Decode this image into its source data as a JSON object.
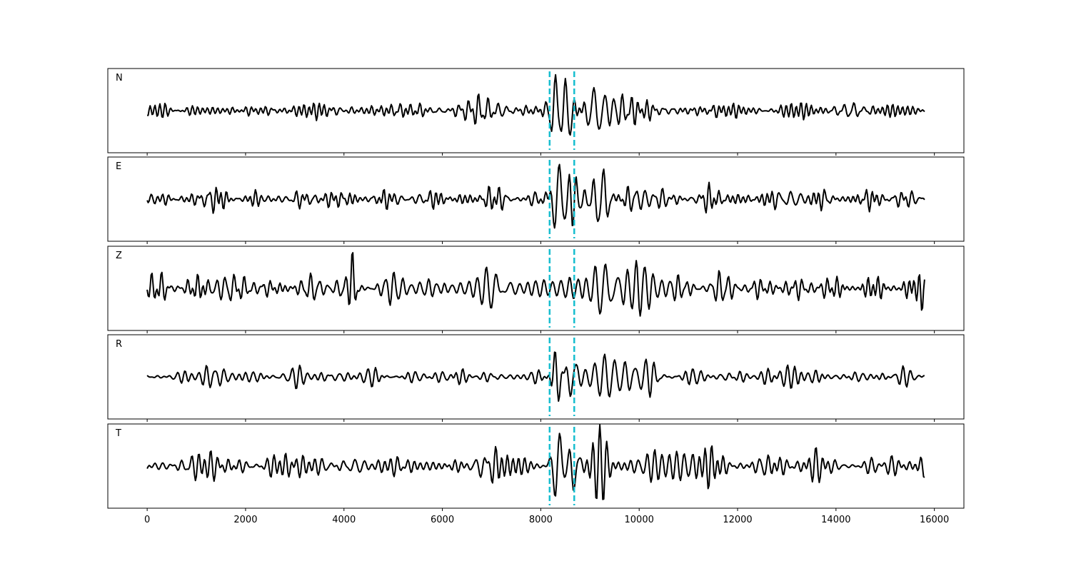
{
  "chart_data": {
    "type": "line",
    "xlim": [
      -800,
      16600
    ],
    "x_ticks": [
      0,
      2000,
      4000,
      6000,
      8000,
      10000,
      12000,
      14000,
      16000
    ],
    "x_tick_labels": [
      "0",
      "2000",
      "4000",
      "6000",
      "8000",
      "10000",
      "12000",
      "14000",
      "16000"
    ],
    "n_samples": 15800,
    "sample_step": 20,
    "picks": [
      8180,
      8680
    ],
    "grid": false,
    "colors": {
      "trace": "#000000",
      "pick": "#17becf",
      "frame": "#000000"
    },
    "panels": [
      {
        "label": "N",
        "ylim": [
          -2.0,
          2.0
        ],
        "noise_amp": 0.22,
        "bursts": [
          {
            "center": 8300,
            "width": 120,
            "amp": 1.5
          },
          {
            "center": 8550,
            "width": 100,
            "amp": 1.4
          },
          {
            "center": 9100,
            "width": 200,
            "amp": 1.1
          },
          {
            "center": 9700,
            "width": 500,
            "amp": 0.6
          },
          {
            "center": 6700,
            "width": 400,
            "amp": 0.35
          },
          {
            "center": 14300,
            "width": 400,
            "amp": 0.3
          }
        ]
      },
      {
        "label": "E",
        "ylim": [
          -2.0,
          2.0
        ],
        "noise_amp": 0.22,
        "bursts": [
          {
            "center": 8350,
            "width": 150,
            "amp": 1.7
          },
          {
            "center": 8650,
            "width": 150,
            "amp": 1.1
          },
          {
            "center": 9250,
            "width": 200,
            "amp": 1.3
          },
          {
            "center": 9800,
            "width": 500,
            "amp": 0.6
          },
          {
            "center": 13100,
            "width": 350,
            "amp": 0.4
          }
        ]
      },
      {
        "label": "Z",
        "ylim": [
          -2.0,
          2.0
        ],
        "noise_amp": 0.38,
        "bursts": [
          {
            "center": 4180,
            "width": 60,
            "amp": 1.6
          },
          {
            "center": 7100,
            "width": 300,
            "amp": 0.6
          },
          {
            "center": 9300,
            "width": 250,
            "amp": 1.3
          },
          {
            "center": 10000,
            "width": 500,
            "amp": 0.6
          },
          {
            "center": 1600,
            "width": 300,
            "amp": 0.5
          },
          {
            "center": 15750,
            "width": 60,
            "amp": 0.8
          }
        ]
      },
      {
        "label": "R",
        "ylim": [
          -2.0,
          2.0
        ],
        "noise_amp": 0.2,
        "bursts": [
          {
            "center": 8320,
            "width": 110,
            "amp": 1.5
          },
          {
            "center": 8620,
            "width": 110,
            "amp": 1.3
          },
          {
            "center": 9300,
            "width": 300,
            "amp": 1.0
          },
          {
            "center": 10000,
            "width": 500,
            "amp": 0.5
          },
          {
            "center": 13000,
            "width": 300,
            "amp": 0.4
          }
        ]
      },
      {
        "label": "T",
        "ylim": [
          -2.0,
          2.0
        ],
        "noise_amp": 0.25,
        "bursts": [
          {
            "center": 8350,
            "width": 150,
            "amp": 1.6
          },
          {
            "center": 8650,
            "width": 120,
            "amp": 1.2
          },
          {
            "center": 9200,
            "width": 200,
            "amp": 1.4
          },
          {
            "center": 10500,
            "width": 800,
            "amp": 0.6
          },
          {
            "center": 6900,
            "width": 300,
            "amp": 0.5
          },
          {
            "center": 4200,
            "width": 300,
            "amp": 0.4
          }
        ]
      }
    ]
  }
}
